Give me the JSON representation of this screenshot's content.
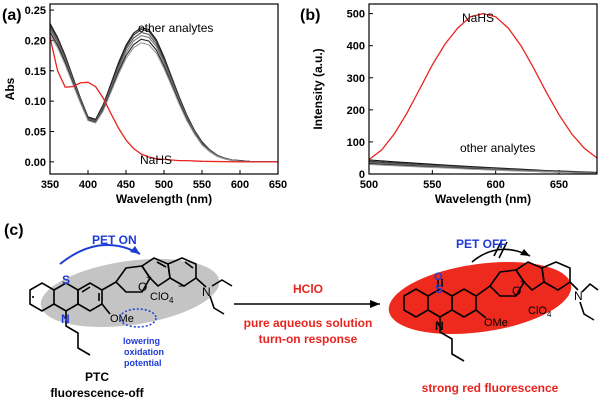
{
  "colors": {
    "analyte_line": "#222222",
    "analyte_line_light": "#666666",
    "nahs_line": "#e8241f",
    "pet_on": "#1f3bd6",
    "pet_off": "#1f3bd6",
    "red_text": "#e8241f",
    "grey_ellipse": "#c4c4c4",
    "red_ellipse": "#ee2a1f",
    "lowering_text": "#1f3bd6"
  },
  "chart_data": [
    {
      "panel": "(a)",
      "type": "line",
      "xlabel": "Wavelength (nm)",
      "ylabel": "Abs",
      "xlim": [
        350,
        650
      ],
      "ylim": [
        -0.02,
        0.26
      ],
      "xticks": [
        "350",
        "400",
        "450",
        "500",
        "550",
        "600",
        "650"
      ],
      "yticks": [
        "0.00",
        "0.05",
        "0.10",
        "0.15",
        "0.20",
        "0.25"
      ],
      "annotations": [
        "other analytes",
        "NaHS"
      ],
      "analyte_x": [
        350,
        360,
        370,
        380,
        390,
        400,
        410,
        420,
        430,
        440,
        450,
        460,
        470,
        480,
        490,
        500,
        510,
        520,
        530,
        540,
        550,
        560,
        570,
        580,
        590,
        600,
        610,
        620,
        630,
        640,
        650
      ],
      "analyte_series": [
        {
          "name": "analyte-1",
          "values": [
            0.228,
            0.205,
            0.175,
            0.14,
            0.105,
            0.074,
            0.07,
            0.094,
            0.128,
            0.163,
            0.192,
            0.212,
            0.221,
            0.218,
            0.201,
            0.173,
            0.14,
            0.107,
            0.077,
            0.052,
            0.033,
            0.02,
            0.011,
            0.006,
            0.003,
            0.002,
            0.001,
            0.0,
            0.0,
            0.0,
            0.0
          ]
        },
        {
          "name": "analyte-2",
          "values": [
            0.225,
            0.203,
            0.173,
            0.138,
            0.104,
            0.072,
            0.068,
            0.092,
            0.126,
            0.16,
            0.189,
            0.209,
            0.218,
            0.215,
            0.198,
            0.17,
            0.138,
            0.105,
            0.076,
            0.051,
            0.032,
            0.019,
            0.011,
            0.006,
            0.003,
            0.002,
            0.001,
            0.0,
            0.0,
            0.0,
            0.0
          ]
        },
        {
          "name": "analyte-3",
          "values": [
            0.221,
            0.199,
            0.17,
            0.136,
            0.102,
            0.071,
            0.067,
            0.09,
            0.123,
            0.156,
            0.185,
            0.204,
            0.213,
            0.21,
            0.194,
            0.167,
            0.135,
            0.103,
            0.074,
            0.05,
            0.031,
            0.019,
            0.01,
            0.005,
            0.003,
            0.001,
            0.001,
            0.0,
            0.0,
            0.0,
            0.0
          ]
        },
        {
          "name": "analyte-4",
          "values": [
            0.217,
            0.196,
            0.167,
            0.134,
            0.101,
            0.07,
            0.066,
            0.088,
            0.12,
            0.152,
            0.18,
            0.199,
            0.208,
            0.205,
            0.19,
            0.163,
            0.132,
            0.101,
            0.072,
            0.049,
            0.03,
            0.018,
            0.01,
            0.005,
            0.003,
            0.001,
            0.001,
            0.0,
            0.0,
            0.0,
            0.0
          ]
        },
        {
          "name": "analyte-5",
          "values": [
            0.213,
            0.192,
            0.164,
            0.131,
            0.099,
            0.069,
            0.065,
            0.086,
            0.117,
            0.148,
            0.175,
            0.193,
            0.202,
            0.199,
            0.184,
            0.158,
            0.128,
            0.098,
            0.07,
            0.047,
            0.029,
            0.017,
            0.009,
            0.005,
            0.002,
            0.001,
            0.0,
            0.0,
            0.0,
            0.0,
            0.0
          ]
        },
        {
          "name": "analyte-6",
          "values": [
            0.208,
            0.188,
            0.16,
            0.128,
            0.097,
            0.068,
            0.064,
            0.084,
            0.114,
            0.144,
            0.17,
            0.188,
            0.196,
            0.193,
            0.179,
            0.154,
            0.125,
            0.095,
            0.068,
            0.046,
            0.028,
            0.017,
            0.009,
            0.005,
            0.002,
            0.001,
            0.0,
            0.0,
            0.0,
            0.0,
            0.0
          ]
        }
      ],
      "nahs_x": [
        350,
        360,
        370,
        380,
        390,
        400,
        410,
        420,
        430,
        440,
        450,
        460,
        470,
        480,
        490,
        500,
        510,
        520,
        530,
        550,
        600,
        650
      ],
      "nahs_values": [
        0.205,
        0.15,
        0.123,
        0.124,
        0.13,
        0.131,
        0.124,
        0.105,
        0.08,
        0.056,
        0.036,
        0.022,
        0.013,
        0.008,
        0.005,
        0.004,
        0.003,
        0.002,
        0.002,
        0.001,
        0.0,
        0.0
      ]
    },
    {
      "panel": "(b)",
      "type": "line",
      "xlabel": "Wavelength (nm)",
      "ylabel": "Intensity (a.u.)",
      "xlim": [
        500,
        680
      ],
      "ylim": [
        0,
        530
      ],
      "xticks": [
        "500",
        "550",
        "600",
        "650"
      ],
      "yticks": [
        "0",
        "100",
        "200",
        "300",
        "400",
        "500"
      ],
      "annotations": [
        "NaHS",
        "other analytes"
      ],
      "nahs_x": [
        500,
        510,
        520,
        530,
        540,
        550,
        560,
        570,
        580,
        590,
        600,
        610,
        620,
        630,
        640,
        650,
        660,
        670,
        680
      ],
      "nahs_values": [
        45,
        75,
        125,
        190,
        265,
        340,
        405,
        455,
        490,
        500,
        490,
        455,
        400,
        330,
        255,
        185,
        125,
        80,
        50
      ],
      "analyte_x": [
        500,
        520,
        540,
        560,
        580,
        600,
        620,
        640,
        660,
        680
      ],
      "analyte_series": [
        {
          "name": "analyte-1",
          "values": [
            44,
            38,
            33,
            28,
            23,
            19,
            15,
            11,
            8,
            5
          ]
        },
        {
          "name": "analyte-2",
          "values": [
            40,
            35,
            30,
            26,
            21,
            17,
            13,
            10,
            7,
            4
          ]
        },
        {
          "name": "analyte-3",
          "values": [
            37,
            32,
            28,
            24,
            20,
            16,
            12,
            9,
            6,
            4
          ]
        },
        {
          "name": "analyte-4",
          "values": [
            35,
            30,
            26,
            22,
            18,
            15,
            11,
            8,
            6,
            3
          ]
        },
        {
          "name": "analyte-5",
          "values": [
            32,
            28,
            24,
            20,
            17,
            13,
            10,
            7,
            5,
            3
          ]
        },
        {
          "name": "analyte-6",
          "values": [
            30,
            26,
            22,
            19,
            15,
            12,
            9,
            7,
            4,
            2
          ]
        }
      ]
    }
  ],
  "scheme": {
    "panel_label": "(c)",
    "pet_on": "PET ON",
    "pet_off": "PET OFF",
    "reagent": "HClO",
    "condition_1": "pure aqueous solution",
    "condition_2": "turn-on response",
    "left_name": "PTC",
    "left_state": "fluorescence-off",
    "right_state": "strong red fluorescence",
    "lowering_1": "lowering",
    "lowering_2": "oxidation",
    "lowering_3": "potential",
    "atom_s": "S",
    "atom_o_ring": "O",
    "atom_n": "N",
    "atom_n_amine": "N",
    "atom_ome": "OMe",
    "atom_so_o": "O",
    "atom_so_s": "S",
    "counterion_main": "ClO",
    "counterion_sub": "4",
    "charge_plus": "+",
    "charge_minus": "−"
  }
}
